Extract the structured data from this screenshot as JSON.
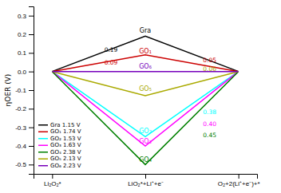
{
  "chart_data": {
    "type": "line",
    "categories": [
      "Li₂O₂*",
      "LiO₂*+Li⁺+e⁻",
      "O₂+2(Li⁺+e⁻)+*"
    ],
    "ylabel": "ηOER (V)",
    "ylim": [
      -0.55,
      0.35
    ],
    "yticks": [
      -0.5,
      -0.4,
      -0.3,
      -0.2,
      -0.1,
      {
        "value": 0.0,
        "label": "0.0"
      },
      0.1,
      0.2,
      0.3
    ],
    "series": [
      {
        "name": "Gra 1.15 V",
        "color": "black",
        "values": [
          0.0,
          0.19,
          0.0
        ]
      },
      {
        "name": "GO₁ 1.74 V",
        "color": "#cc0000",
        "values": [
          0.0,
          0.09,
          0.0
        ]
      },
      {
        "name": "GO₂ 1.53 V",
        "color": "cyan",
        "values": [
          0.0,
          -0.35,
          0.0
        ]
      },
      {
        "name": "GO₃ 1.63 V",
        "color": "magenta",
        "values": [
          0.0,
          -0.4,
          0.0
        ]
      },
      {
        "name": "GO₄ 2.38 V",
        "color": "green",
        "values": [
          0.0,
          -0.5,
          0.0
        ]
      },
      {
        "name": "GO₅ 2.13 V",
        "color": "#aaaa00",
        "values": [
          0.0,
          -0.13,
          0.0
        ]
      },
      {
        "name": "GO₆ 2.23 V",
        "color": "#7700bb",
        "values": [
          0.0,
          0.0,
          0.0
        ]
      }
    ],
    "annotations": [
      {
        "text": "Gra",
        "x": 1.0,
        "y": 0.22,
        "color": "black"
      },
      {
        "text": "GO₁",
        "x": 1.0,
        "y": 0.11,
        "color": "#cc0000"
      },
      {
        "text": "GO₆",
        "x": 1.0,
        "y": 0.025,
        "color": "#7700bb"
      },
      {
        "text": "GO₅",
        "x": 1.0,
        "y": -0.095,
        "color": "#aaaa00"
      },
      {
        "text": "GO₂",
        "x": 1.0,
        "y": -0.32,
        "color": "cyan"
      },
      {
        "text": "GO₃",
        "x": 1.0,
        "y": -0.375,
        "color": "magenta"
      },
      {
        "text": "GO₄",
        "x": 1.0,
        "y": -0.475,
        "color": "green"
      },
      {
        "text": "0.19",
        "x": 0.56,
        "y": 0.115,
        "color": "black"
      },
      {
        "text": "0.09",
        "x": 0.56,
        "y": 0.045,
        "color": "#cc0000"
      },
      {
        "text": "0.05",
        "x": 1.62,
        "y": 0.06,
        "color": "#cc0000"
      },
      {
        "text": "0.06",
        "x": 1.62,
        "y": 0.01,
        "color": "#aaaa00"
      },
      {
        "text": "0.38",
        "x": 1.62,
        "y": -0.22,
        "color": "cyan"
      },
      {
        "text": "0.40",
        "x": 1.62,
        "y": -0.285,
        "color": "magenta"
      },
      {
        "text": "0.45",
        "x": 1.62,
        "y": -0.345,
        "color": "green"
      }
    ],
    "legend": "lower left",
    "grid": false
  }
}
